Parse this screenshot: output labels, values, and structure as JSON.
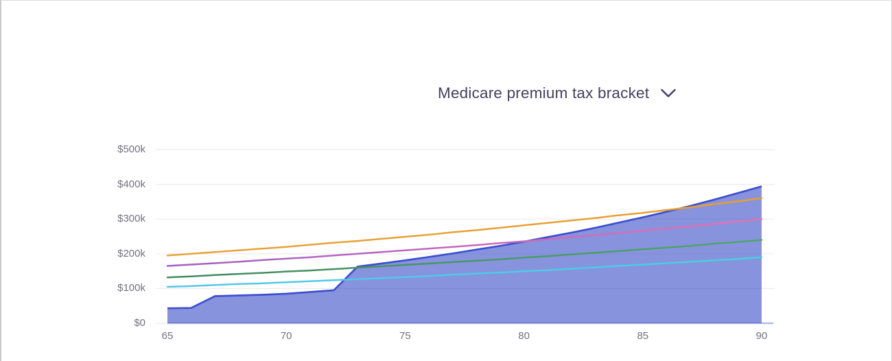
{
  "header": {
    "dropdown_label": "Medicare premium tax bracket",
    "chevron_icon": "chevron-down"
  },
  "colors": {
    "title_text": "#454060",
    "chevron": "#49436b",
    "tick_text": "#72727c",
    "gridline": "#ececec",
    "baseline": "#b2bbe9",
    "area_fill": "rgba(63,80,200,0.62)",
    "area_stroke": "#3c4fd0",
    "line_cyan_start": "#56c5e9",
    "line_cyan_end": "#45d0e2",
    "line_green_start": "#41895f",
    "line_green_end": "#4ea76b",
    "line_purple_start": "#a05fc4",
    "line_purple_end": "#e273b3",
    "line_orange_start": "#e7a337",
    "line_orange_end": "#e79e2f"
  },
  "chart_data": {
    "type": "area",
    "title": "Medicare premium tax bracket",
    "xlabel": "",
    "ylabel": "",
    "values_unit": "USD thousands",
    "x": [
      65,
      66,
      67,
      68,
      69,
      70,
      71,
      72,
      73,
      74,
      75,
      76,
      77,
      78,
      79,
      80,
      81,
      82,
      83,
      84,
      85,
      86,
      87,
      88,
      89,
      90
    ],
    "x_ticks": [
      "65",
      "70",
      "75",
      "80",
      "85",
      "90"
    ],
    "y_ticks": [
      {
        "label": "$500k",
        "v": 500
      },
      {
        "label": "$400k",
        "v": 400
      },
      {
        "label": "$300k",
        "v": 300
      },
      {
        "label": "$200k",
        "v": 200
      },
      {
        "label": "$100k",
        "v": 100
      },
      {
        "label": "$0",
        "v": 0
      }
    ],
    "ylim_k": [
      0,
      500
    ],
    "grid": true,
    "legend": "none",
    "series": [
      {
        "name": "projected-income-area",
        "type": "area",
        "values_k": [
          43,
          44,
          78,
          80,
          82,
          85,
          90,
          95,
          163,
          172,
          181,
          191,
          201,
          212,
          223,
          235,
          248,
          261,
          275,
          290,
          305,
          321,
          338,
          356,
          375,
          394
        ]
      },
      {
        "name": "premium-bracket-threshold-1",
        "type": "line",
        "gradient": [
          "line_cyan_start",
          "line_cyan_end"
        ],
        "values_k": [
          105,
          107,
          110,
          113,
          115,
          118,
          121,
          124,
          127,
          130,
          133,
          136,
          140,
          143,
          146,
          150,
          153,
          157,
          161,
          165,
          169,
          173,
          177,
          181,
          185,
          190
        ]
      },
      {
        "name": "premium-bracket-threshold-2",
        "type": "line",
        "gradient": [
          "line_green_start",
          "line_green_end"
        ],
        "values_k": [
          132,
          135,
          139,
          142,
          145,
          149,
          152,
          156,
          160,
          164,
          168,
          172,
          176,
          180,
          184,
          189,
          193,
          198,
          203,
          208,
          213,
          218,
          223,
          229,
          234,
          240
        ]
      },
      {
        "name": "premium-bracket-threshold-3",
        "type": "line",
        "gradient": [
          "line_purple_start",
          "line_purple_end"
        ],
        "values_k": [
          165,
          169,
          173,
          177,
          182,
          186,
          190,
          195,
          200,
          205,
          210,
          215,
          220,
          225,
          231,
          236,
          242,
          248,
          254,
          260,
          266,
          273,
          279,
          286,
          293,
          300
        ]
      },
      {
        "name": "premium-bracket-threshold-4",
        "type": "line",
        "gradient": [
          "line_orange_start",
          "line_orange_end"
        ],
        "values_k": [
          195,
          200,
          205,
          210,
          215,
          220,
          226,
          232,
          237,
          243,
          249,
          255,
          262,
          268,
          275,
          282,
          289,
          296,
          303,
          311,
          318,
          326,
          334,
          343,
          351,
          360
        ]
      }
    ]
  }
}
